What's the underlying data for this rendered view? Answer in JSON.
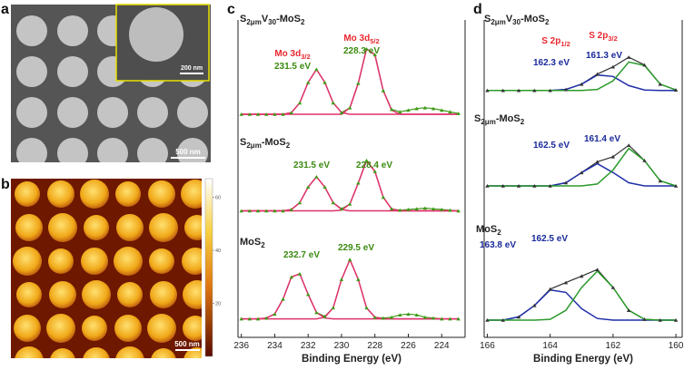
{
  "images": {
    "a": {
      "panel": "a",
      "scale_bar": "500 nm",
      "inset_scale_bar": "200 nm"
    },
    "b": {
      "panel": "b",
      "scale_bar": "500 nm",
      "colorbar_lim": [
        0,
        67
      ],
      "colorbar_ticks": [
        60,
        40,
        20
      ]
    }
  },
  "chart_data": [
    {
      "type": "line",
      "panel": "c",
      "label": [
        "S",
        "2μm",
        "V",
        "30",
        "-MoS",
        "2"
      ],
      "x": [
        236,
        235.5,
        235,
        234.5,
        234,
        233.5,
        233,
        232.5,
        232,
        231.5,
        231,
        230.5,
        230,
        229.5,
        229,
        228.5,
        228,
        227.5,
        227,
        226.5,
        226,
        225.5,
        225,
        224.5,
        224,
        223.5,
        223
      ],
      "xlim": [
        236.2,
        222.6
      ],
      "ylim": [
        0,
        100
      ],
      "series": [
        {
          "color": "#3c9a14",
          "values": [
            10,
            10,
            10,
            10,
            10,
            10,
            12,
            24,
            49,
            65,
            49,
            24,
            12,
            18,
            48,
            90,
            83,
            39,
            16,
            13,
            15,
            17,
            18,
            17,
            15,
            13,
            11
          ]
        },
        {
          "color": "#e0306a",
          "values": [
            10,
            10,
            10,
            10,
            10,
            10,
            12,
            24,
            49,
            65,
            49,
            24,
            12,
            10,
            10,
            10,
            10,
            10,
            10,
            10,
            10,
            10,
            10,
            10,
            10,
            10,
            10
          ]
        },
        {
          "color": "#e0306a",
          "values": [
            10,
            10,
            10,
            10,
            10,
            10,
            10,
            10,
            10,
            10,
            10,
            10,
            10,
            18,
            48,
            90,
            83,
            39,
            15,
            10,
            10,
            10,
            10,
            10,
            10,
            10,
            10
          ]
        }
      ],
      "annotations": [
        {
          "text": [
            "Mo 3d",
            "3/2"
          ],
          "color": "#e8282f"
        },
        {
          "text": "231.5 eV",
          "color": "#3a8a10"
        },
        {
          "text": [
            "Mo 3d",
            "5/2"
          ],
          "color": "#e8282f"
        },
        {
          "text": "228.3 eV",
          "color": "#3a8a10"
        }
      ]
    },
    {
      "type": "line",
      "label": [
        "S",
        "2μm",
        "-MoS",
        "2"
      ],
      "x": [
        236,
        235.5,
        235,
        234.5,
        234,
        233.5,
        233,
        232.5,
        232,
        231.5,
        231,
        230.5,
        230,
        229.5,
        229,
        228.5,
        228,
        227.5,
        227,
        226.5,
        226,
        225.5,
        225,
        224.5,
        224,
        223.5,
        223
      ],
      "xlim": [
        236.2,
        222.6
      ],
      "ylim": [
        0,
        100
      ],
      "series": [
        {
          "color": "#3c9a14",
          "values": [
            10,
            10,
            10,
            10,
            10,
            10,
            12,
            22,
            45,
            60,
            45,
            22,
            13,
            20,
            51,
            84,
            68,
            30,
            13,
            11,
            12,
            13,
            14,
            13,
            12,
            11,
            10
          ]
        },
        {
          "color": "#e0306a",
          "values": [
            10,
            10,
            10,
            10,
            10,
            10,
            12,
            22,
            45,
            60,
            45,
            22,
            12,
            10,
            10,
            10,
            10,
            10,
            10,
            10,
            10,
            10,
            10,
            10,
            10,
            10,
            10
          ]
        },
        {
          "color": "#e0306a",
          "values": [
            10,
            10,
            10,
            10,
            10,
            10,
            10,
            10,
            10,
            10,
            10,
            10,
            11,
            20,
            51,
            84,
            68,
            30,
            13,
            10,
            10,
            10,
            10,
            10,
            10,
            10,
            10
          ]
        }
      ],
      "annotations": [
        {
          "text": "231.5 eV",
          "color": "#3a8a10"
        },
        {
          "text": "228.4 eV",
          "color": "#3a8a10"
        }
      ]
    },
    {
      "type": "line",
      "label": [
        "MoS",
        "2"
      ],
      "x": [
        236,
        235.5,
        235,
        234.5,
        234,
        233.5,
        233,
        232.5,
        232,
        231.5,
        231,
        230.5,
        230,
        229.5,
        229,
        228.5,
        228,
        227.5,
        227,
        226.5,
        226,
        225.5,
        225,
        224.5,
        224,
        223.5,
        223
      ],
      "xlim": [
        236.2,
        222.6
      ],
      "ylim": [
        0,
        100
      ],
      "xticks": [
        236,
        234,
        232,
        230,
        228,
        226,
        224
      ],
      "xlabel": "Binding Energy (eV)",
      "series": [
        {
          "color": "#3c9a14",
          "values": [
            12,
            12,
            12,
            13,
            18,
            37,
            65,
            69,
            43,
            20,
            15,
            26,
            62,
            87,
            62,
            26,
            14,
            13,
            14,
            17,
            18,
            17,
            14,
            13,
            12,
            12,
            12
          ]
        },
        {
          "color": "#e0306a",
          "values": [
            12,
            12,
            12,
            13,
            18,
            37,
            65,
            69,
            43,
            20,
            13,
            12,
            12,
            12,
            12,
            12,
            12,
            12,
            12,
            12,
            12,
            12,
            12,
            12,
            12,
            12,
            12
          ]
        },
        {
          "color": "#e0306a",
          "values": [
            12,
            12,
            12,
            12,
            12,
            12,
            12,
            12,
            12,
            12,
            14,
            26,
            62,
            87,
            62,
            26,
            14,
            12,
            12,
            12,
            12,
            12,
            12,
            12,
            12,
            12,
            12
          ]
        }
      ],
      "annotations": [
        {
          "text": "232.7 eV",
          "color": "#3a8a10"
        },
        {
          "text": "229.5 eV",
          "color": "#3a8a10"
        }
      ]
    },
    {
      "type": "line",
      "panel": "d",
      "label": [
        "S",
        "2μm",
        "V",
        "30",
        "-MoS",
        "2"
      ],
      "x": [
        166,
        165.5,
        165,
        164.5,
        164,
        163.5,
        163,
        162.5,
        162,
        161.5,
        161,
        160.5,
        160
      ],
      "xlim": [
        166.1,
        159.8
      ],
      "ylim": [
        0,
        100
      ],
      "series": [
        {
          "color": "#333333",
          "values": [
            10,
            10,
            10,
            10,
            10,
            12,
            23,
            44,
            59,
            79,
            63,
            23,
            11
          ]
        },
        {
          "color": "#1f2fa8",
          "values": [
            10,
            10,
            10,
            10,
            10,
            12,
            23,
            42,
            39,
            20,
            11,
            10,
            10
          ]
        },
        {
          "color": "#2a9a2a",
          "values": [
            10,
            10,
            10,
            10,
            10,
            10,
            10,
            12,
            30,
            69,
            62,
            23,
            11
          ]
        }
      ],
      "annotations": [
        {
          "text": [
            "S 2p",
            "1/2"
          ],
          "color": "#e8282f"
        },
        {
          "text": [
            "S 2p",
            "3/2"
          ],
          "color": "#e8282f"
        },
        {
          "text": "162.3 eV",
          "color": "#1a2a9a"
        },
        {
          "text": "161.3 eV",
          "color": "#1a2a9a"
        }
      ]
    },
    {
      "type": "line",
      "label": [
        "S",
        "2μm",
        "-MoS",
        "2"
      ],
      "x": [
        166,
        165.5,
        165,
        164.5,
        164,
        163.5,
        163,
        162.5,
        162,
        161.5,
        161,
        160.5,
        160
      ],
      "xlim": [
        166.1,
        159.8
      ],
      "ylim": [
        0,
        100
      ],
      "series": [
        {
          "color": "#333333",
          "values": [
            10,
            10,
            10,
            10,
            10,
            15,
            31,
            48,
            56,
            74,
            50,
            18,
            10
          ]
        },
        {
          "color": "#1f2fa8",
          "values": [
            10,
            10,
            10,
            10,
            10,
            15,
            31,
            45,
            31,
            15,
            10,
            10,
            10
          ]
        },
        {
          "color": "#2a9a2a",
          "values": [
            10,
            10,
            10,
            10,
            10,
            10,
            10,
            13,
            35,
            69,
            50,
            18,
            10
          ]
        }
      ],
      "annotations": [
        {
          "text": "162.5 eV",
          "color": "#1a2a9a"
        },
        {
          "text": "161.4 eV",
          "color": "#1a2a9a"
        }
      ]
    },
    {
      "type": "line",
      "label": [
        "MoS",
        "2"
      ],
      "x": [
        166,
        165.5,
        165,
        164.5,
        164,
        163.5,
        163,
        162.5,
        162,
        161.5,
        161,
        160.5,
        160
      ],
      "xlim": [
        166.1,
        159.8
      ],
      "ylim": [
        0,
        100
      ],
      "xticks": [
        166,
        164,
        162,
        160
      ],
      "xlabel": "Binding Energy (eV)",
      "series": [
        {
          "color": "#333333",
          "values": [
            10,
            10,
            14,
            28,
            48,
            56,
            64,
            72,
            50,
            22,
            11,
            10,
            10
          ]
        },
        {
          "color": "#1f2fa8",
          "values": [
            10,
            10,
            14,
            28,
            47,
            44,
            24,
            12,
            10,
            10,
            10,
            10,
            10
          ]
        },
        {
          "color": "#2a9a2a",
          "values": [
            10,
            10,
            10,
            10,
            11,
            22,
            50,
            70,
            50,
            22,
            11,
            10,
            10
          ]
        }
      ],
      "annotations": [
        {
          "text": "163.8 eV",
          "color": "#1a2a9a"
        },
        {
          "text": "162.5 eV",
          "color": "#1a2a9a"
        }
      ]
    }
  ]
}
